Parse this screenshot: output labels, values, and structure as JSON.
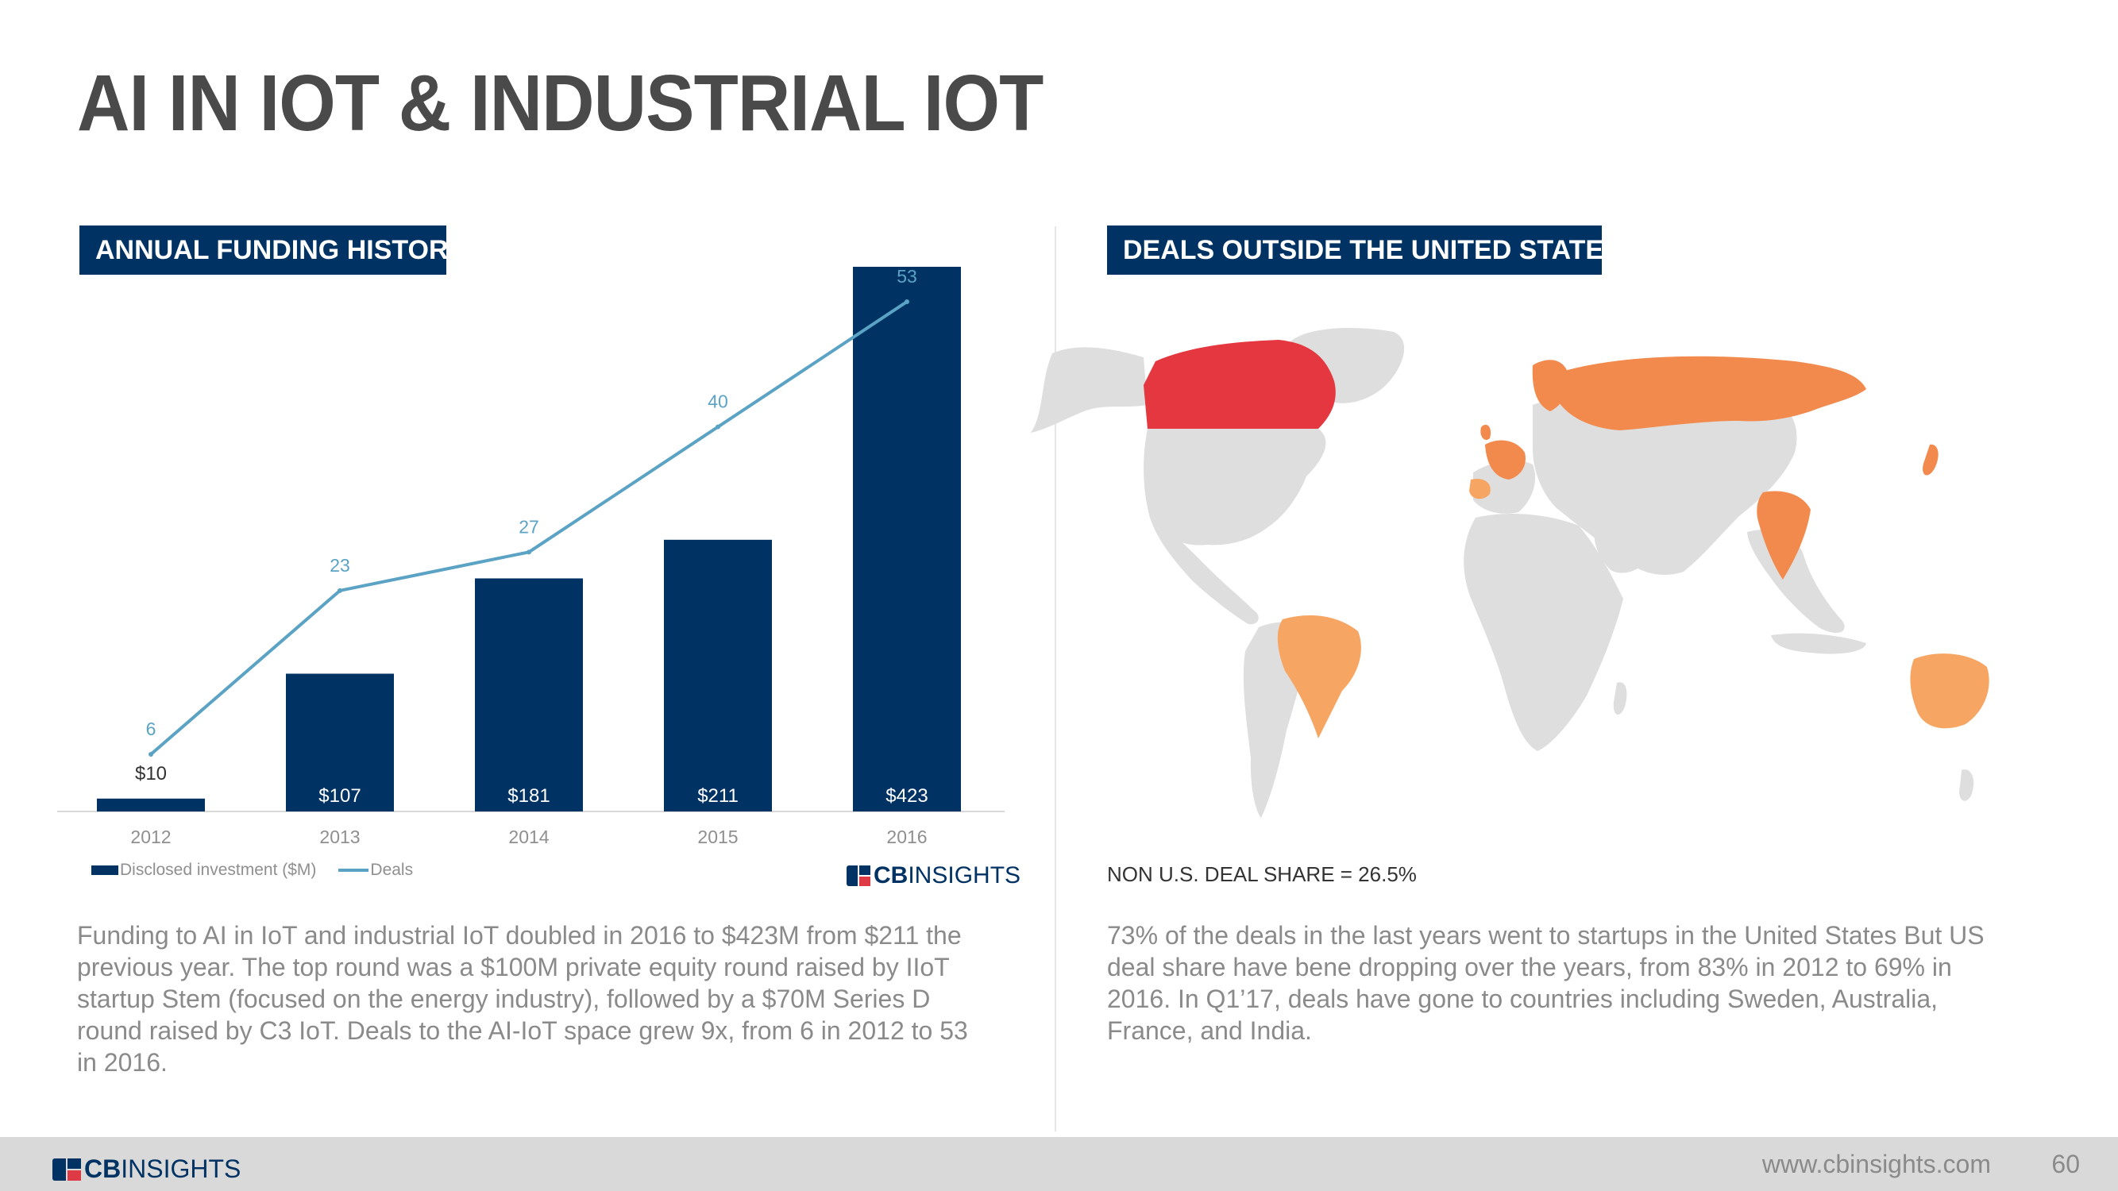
{
  "page": {
    "title": "AI IN IOT & INDUSTRIAL IOT",
    "page_number": "60",
    "footer_url": "www.cbinsights.com"
  },
  "logo": {
    "cb": "CB",
    "insights": "INSIGHTS"
  },
  "left_panel": {
    "tag": "ANNUAL FUNDING HISTORY",
    "legend": {
      "bars": "Disclosed investment ($M)",
      "line": "Deals"
    },
    "body": "Funding to AI in IoT and industrial IoT doubled in 2016 to $423M from $211 the previous year.  The top round was a $100M private equity round raised by IIoT startup Stem (focused on the energy industry), followed by a $70M Series D round raised by C3 IoT. Deals to the AI-IoT space grew 9x, from 6 in 2012 to 53 in 2016."
  },
  "right_panel": {
    "tag": "DEALS OUTSIDE THE UNITED STATES",
    "deal_share": "NON U.S. DEAL SHARE = 26.5%",
    "body": "73% of the deals in the last  years went to startups in the United States But US deal share have bene dropping over the years, from 83% in 2012 to 69% in 2016. In Q1’17, deals have gone to countries including Sweden, Australia, France, and India."
  },
  "chart_data": {
    "type": "bar",
    "categories": [
      "2012",
      "2013",
      "2014",
      "2015",
      "2016"
    ],
    "series": [
      {
        "name": "Disclosed investment ($M)",
        "type": "bar",
        "values": [
          10,
          107,
          181,
          211,
          423
        ],
        "labels": [
          "$10",
          "$107",
          "$181",
          "$211",
          "$423"
        ],
        "color": "#003363"
      },
      {
        "name": "Deals",
        "type": "line",
        "values": [
          6,
          23,
          27,
          40,
          53
        ],
        "labels": [
          "6",
          "23",
          "27",
          "40",
          "53"
        ],
        "color": "#5ba3c4"
      }
    ],
    "legend": "bottom-left",
    "grid": false
  },
  "map": {
    "colors": {
      "highest": "#e5373f",
      "high": "#f28a4e",
      "medium": "#f6a662",
      "none": "#dedede"
    }
  }
}
